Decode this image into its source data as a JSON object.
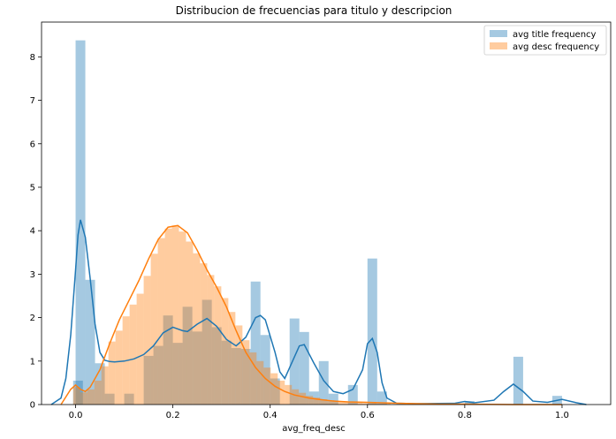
{
  "chart_data": {
    "type": "histogram",
    "title": "Distribucion de frecuencias para titulo y descripcion",
    "xlabel": "avg_freq_desc",
    "ylabel": "",
    "xlim": [
      -0.07,
      1.1
    ],
    "ylim": [
      0,
      8.8
    ],
    "xticks": [
      0.0,
      0.2,
      0.4,
      0.6,
      0.8,
      1.0
    ],
    "yticks": [
      0,
      1,
      2,
      3,
      4,
      5,
      6,
      7,
      8
    ],
    "legend_position": "upper-right",
    "grid": false,
    "series": [
      {
        "name": "avg title frequency",
        "color": "#1f77b4",
        "bin_width": 0.02,
        "bins": [
          {
            "x0": -0.005,
            "h": 0.55
          },
          {
            "x0": 0.0,
            "h": 8.38
          },
          {
            "x0": 0.02,
            "h": 2.87
          },
          {
            "x0": 0.04,
            "h": 0.95
          },
          {
            "x0": 0.06,
            "h": 0.25
          },
          {
            "x0": 0.1,
            "h": 0.25
          },
          {
            "x0": 0.14,
            "h": 1.12
          },
          {
            "x0": 0.16,
            "h": 1.35
          },
          {
            "x0": 0.18,
            "h": 2.05
          },
          {
            "x0": 0.2,
            "h": 1.42
          },
          {
            "x0": 0.22,
            "h": 2.25
          },
          {
            "x0": 0.24,
            "h": 1.68
          },
          {
            "x0": 0.26,
            "h": 2.41
          },
          {
            "x0": 0.28,
            "h": 1.78
          },
          {
            "x0": 0.3,
            "h": 1.47
          },
          {
            "x0": 0.32,
            "h": 1.3
          },
          {
            "x0": 0.34,
            "h": 1.28
          },
          {
            "x0": 0.36,
            "h": 2.83
          },
          {
            "x0": 0.38,
            "h": 1.6
          },
          {
            "x0": 0.4,
            "h": 0.6
          },
          {
            "x0": 0.44,
            "h": 1.98
          },
          {
            "x0": 0.46,
            "h": 1.67
          },
          {
            "x0": 0.48,
            "h": 0.3
          },
          {
            "x0": 0.5,
            "h": 1.0
          },
          {
            "x0": 0.52,
            "h": 0.25
          },
          {
            "x0": 0.56,
            "h": 0.45
          },
          {
            "x0": 0.6,
            "h": 3.36
          },
          {
            "x0": 0.62,
            "h": 0.3
          },
          {
            "x0": 0.8,
            "h": 0.08
          },
          {
            "x0": 0.9,
            "h": 1.1
          },
          {
            "x0": 0.98,
            "h": 0.2
          }
        ],
        "kde": [
          [
            -0.05,
            0.0
          ],
          [
            -0.03,
            0.15
          ],
          [
            -0.02,
            0.6
          ],
          [
            -0.01,
            1.6
          ],
          [
            0.0,
            3.1
          ],
          [
            0.005,
            3.9
          ],
          [
            0.01,
            4.25
          ],
          [
            0.02,
            3.85
          ],
          [
            0.03,
            2.9
          ],
          [
            0.04,
            1.85
          ],
          [
            0.05,
            1.2
          ],
          [
            0.06,
            1.02
          ],
          [
            0.07,
            0.99
          ],
          [
            0.08,
            0.98
          ],
          [
            0.1,
            1.0
          ],
          [
            0.12,
            1.05
          ],
          [
            0.14,
            1.15
          ],
          [
            0.16,
            1.35
          ],
          [
            0.18,
            1.65
          ],
          [
            0.2,
            1.78
          ],
          [
            0.22,
            1.7
          ],
          [
            0.23,
            1.68
          ],
          [
            0.25,
            1.85
          ],
          [
            0.27,
            1.98
          ],
          [
            0.29,
            1.8
          ],
          [
            0.31,
            1.5
          ],
          [
            0.33,
            1.35
          ],
          [
            0.35,
            1.55
          ],
          [
            0.37,
            2.0
          ],
          [
            0.38,
            2.05
          ],
          [
            0.39,
            1.95
          ],
          [
            0.41,
            1.2
          ],
          [
            0.42,
            0.75
          ],
          [
            0.43,
            0.6
          ],
          [
            0.44,
            0.85
          ],
          [
            0.46,
            1.35
          ],
          [
            0.47,
            1.38
          ],
          [
            0.49,
            0.95
          ],
          [
            0.51,
            0.55
          ],
          [
            0.53,
            0.3
          ],
          [
            0.55,
            0.25
          ],
          [
            0.57,
            0.35
          ],
          [
            0.59,
            0.8
          ],
          [
            0.6,
            1.4
          ],
          [
            0.61,
            1.52
          ],
          [
            0.62,
            1.2
          ],
          [
            0.63,
            0.5
          ],
          [
            0.64,
            0.15
          ],
          [
            0.66,
            0.03
          ],
          [
            0.7,
            0.02
          ],
          [
            0.78,
            0.03
          ],
          [
            0.8,
            0.07
          ],
          [
            0.82,
            0.04
          ],
          [
            0.86,
            0.1
          ],
          [
            0.88,
            0.3
          ],
          [
            0.9,
            0.47
          ],
          [
            0.92,
            0.3
          ],
          [
            0.94,
            0.08
          ],
          [
            0.97,
            0.05
          ],
          [
            1.0,
            0.12
          ],
          [
            1.03,
            0.04
          ],
          [
            1.05,
            0.0
          ]
        ]
      },
      {
        "name": "avg desc frequency",
        "color": "#ff7f0e",
        "bin_width": 0.0145,
        "bins": [
          {
            "x0": -0.005,
            "h": 0.4
          },
          {
            "x0": 0.0095,
            "h": 0.28
          },
          {
            "x0": 0.024,
            "h": 0.35
          },
          {
            "x0": 0.0385,
            "h": 0.55
          },
          {
            "x0": 0.053,
            "h": 0.88
          },
          {
            "x0": 0.0675,
            "h": 1.45
          },
          {
            "x0": 0.082,
            "h": 1.7
          },
          {
            "x0": 0.0965,
            "h": 2.03
          },
          {
            "x0": 0.111,
            "h": 2.3
          },
          {
            "x0": 0.1255,
            "h": 2.55
          },
          {
            "x0": 0.14,
            "h": 2.96
          },
          {
            "x0": 0.1545,
            "h": 3.47
          },
          {
            "x0": 0.169,
            "h": 3.83
          },
          {
            "x0": 0.1835,
            "h": 4.05
          },
          {
            "x0": 0.198,
            "h": 4.12
          },
          {
            "x0": 0.2125,
            "h": 3.98
          },
          {
            "x0": 0.227,
            "h": 3.75
          },
          {
            "x0": 0.2415,
            "h": 3.48
          },
          {
            "x0": 0.256,
            "h": 3.25
          },
          {
            "x0": 0.2705,
            "h": 2.98
          },
          {
            "x0": 0.285,
            "h": 2.72
          },
          {
            "x0": 0.2995,
            "h": 2.45
          },
          {
            "x0": 0.314,
            "h": 2.13
          },
          {
            "x0": 0.3285,
            "h": 1.82
          },
          {
            "x0": 0.343,
            "h": 1.48
          },
          {
            "x0": 0.3575,
            "h": 1.2
          },
          {
            "x0": 0.372,
            "h": 1.0
          },
          {
            "x0": 0.3865,
            "h": 0.85
          },
          {
            "x0": 0.401,
            "h": 0.72
          },
          {
            "x0": 0.4155,
            "h": 0.55
          },
          {
            "x0": 0.43,
            "h": 0.45
          },
          {
            "x0": 0.4445,
            "h": 0.35
          },
          {
            "x0": 0.459,
            "h": 0.27
          },
          {
            "x0": 0.4735,
            "h": 0.2
          },
          {
            "x0": 0.488,
            "h": 0.16
          },
          {
            "x0": 0.5025,
            "h": 0.12
          },
          {
            "x0": 0.517,
            "h": 0.1
          },
          {
            "x0": 0.5315,
            "h": 0.08
          },
          {
            "x0": 0.546,
            "h": 0.06
          },
          {
            "x0": 0.5605,
            "h": 0.05
          },
          {
            "x0": 0.575,
            "h": 0.04
          },
          {
            "x0": 0.5895,
            "h": 0.03
          },
          {
            "x0": 0.604,
            "h": 0.03
          },
          {
            "x0": 0.6185,
            "h": 0.02
          },
          {
            "x0": 0.633,
            "h": 0.02
          }
        ],
        "kde": [
          [
            -0.03,
            0.0
          ],
          [
            -0.01,
            0.35
          ],
          [
            0.0,
            0.45
          ],
          [
            0.01,
            0.35
          ],
          [
            0.02,
            0.3
          ],
          [
            0.03,
            0.4
          ],
          [
            0.05,
            0.8
          ],
          [
            0.07,
            1.4
          ],
          [
            0.09,
            1.95
          ],
          [
            0.11,
            2.4
          ],
          [
            0.13,
            2.85
          ],
          [
            0.15,
            3.35
          ],
          [
            0.17,
            3.8
          ],
          [
            0.19,
            4.08
          ],
          [
            0.21,
            4.12
          ],
          [
            0.23,
            3.95
          ],
          [
            0.25,
            3.55
          ],
          [
            0.27,
            3.1
          ],
          [
            0.29,
            2.7
          ],
          [
            0.31,
            2.25
          ],
          [
            0.33,
            1.7
          ],
          [
            0.35,
            1.2
          ],
          [
            0.37,
            0.85
          ],
          [
            0.39,
            0.6
          ],
          [
            0.41,
            0.42
          ],
          [
            0.43,
            0.3
          ],
          [
            0.45,
            0.22
          ],
          [
            0.48,
            0.15
          ],
          [
            0.5,
            0.12
          ],
          [
            0.53,
            0.08
          ],
          [
            0.56,
            0.06
          ],
          [
            0.6,
            0.05
          ],
          [
            0.63,
            0.04
          ],
          [
            0.66,
            0.03
          ],
          [
            0.7,
            0.02
          ],
          [
            0.75,
            0.01
          ],
          [
            0.8,
            0.01
          ],
          [
            0.9,
            0.0
          ],
          [
            1.0,
            0.0
          ]
        ]
      }
    ]
  }
}
